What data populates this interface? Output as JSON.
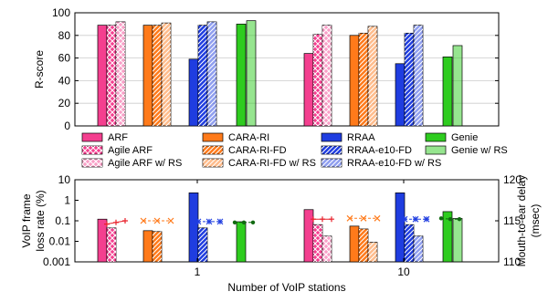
{
  "legend": [
    {
      "label": "ARF",
      "color": "#f43f8f",
      "pattern": "solid"
    },
    {
      "label": "Agile ARF",
      "color": "#f43f8f",
      "pattern": "cross"
    },
    {
      "label": "Agile ARF w/ RS",
      "color": "#f43f8f",
      "pattern": "cross-light"
    },
    {
      "label": "CARA-RI",
      "color": "#ff7a1a",
      "pattern": "solid"
    },
    {
      "label": "CARA-RI-FD",
      "color": "#ff7a1a",
      "pattern": "diag"
    },
    {
      "label": "CARA-RI-FD w/ RS",
      "color": "#ff7a1a",
      "pattern": "diag-light"
    },
    {
      "label": "RRAA",
      "color": "#1f3de0",
      "pattern": "solid"
    },
    {
      "label": "RRAA-e10-FD",
      "color": "#1f3de0",
      "pattern": "diag"
    },
    {
      "label": "RRAA-e10-FD w/ RS",
      "color": "#1f3de0",
      "pattern": "diag-light"
    },
    {
      "label": "Genie",
      "color": "#2ecc1f",
      "pattern": "solid"
    },
    {
      "label": "Genie w/ RS",
      "color": "#2ecc1f",
      "pattern": "light"
    }
  ],
  "chart_data": [
    {
      "type": "bar",
      "ylabel": "R-score",
      "ylim": [
        0,
        100
      ],
      "yticks": [
        "0",
        "20",
        "40",
        "60",
        "80",
        "100"
      ],
      "categories": [
        "1",
        "10"
      ],
      "grid": true,
      "series": [
        {
          "name": "ARF",
          "values": [
            89,
            64
          ]
        },
        {
          "name": "Agile ARF",
          "values": [
            89,
            81
          ]
        },
        {
          "name": "Agile ARF w/ RS",
          "values": [
            92,
            89
          ]
        },
        {
          "name": "CARA-RI",
          "values": [
            89,
            80
          ]
        },
        {
          "name": "CARA-RI-FD",
          "values": [
            89,
            82
          ]
        },
        {
          "name": "CARA-RI-FD w/ RS",
          "values": [
            91,
            88
          ]
        },
        {
          "name": "RRAA",
          "values": [
            59,
            55
          ]
        },
        {
          "name": "RRAA-e10-FD",
          "values": [
            89,
            82
          ]
        },
        {
          "name": "RRAA-e10-FD w/ RS",
          "values": [
            92,
            89
          ]
        },
        {
          "name": "Genie",
          "values": [
            90,
            61
          ]
        },
        {
          "name": "Genie w/ RS",
          "values": [
            93,
            71
          ]
        }
      ]
    },
    {
      "type": "bar",
      "ylabel": "VoIP frame loss rate (%)",
      "y_scale": "log",
      "ylim": [
        0.001,
        10
      ],
      "yticks": [
        "0.001",
        "0.01",
        "0.1",
        "1",
        "10"
      ],
      "y2label": "Mouth-to-ear delay (msec)",
      "y2lim": [
        110,
        120
      ],
      "y2ticks": [
        "110",
        "115",
        "120"
      ],
      "xlabel": "Number of VoIP stations",
      "categories": [
        "1",
        "10"
      ],
      "series": [
        {
          "name": "ARF",
          "values": [
            0.12,
            0.35
          ]
        },
        {
          "name": "Agile ARF",
          "values": [
            0.045,
            0.065
          ]
        },
        {
          "name": "Agile ARF w/ RS",
          "values": [
            0.001,
            0.018
          ]
        },
        {
          "name": "CARA-RI",
          "values": [
            0.033,
            0.055
          ]
        },
        {
          "name": "CARA-RI-FD",
          "values": [
            0.03,
            0.04
          ]
        },
        {
          "name": "CARA-RI-FD w/ RS",
          "values": [
            0.001,
            0.009
          ]
        },
        {
          "name": "RRAA",
          "values": [
            2.3,
            2.3
          ]
        },
        {
          "name": "RRAA-e10-FD",
          "values": [
            0.045,
            0.065
          ]
        },
        {
          "name": "RRAA-e10-FD w/ RS",
          "values": [
            0.001,
            0.018
          ]
        },
        {
          "name": "Genie",
          "values": [
            0.09,
            0.28
          ]
        },
        {
          "name": "Genie w/ RS",
          "values": [
            0.001,
            0.13
          ]
        }
      ],
      "delay_lines": [
        {
          "name": "ARF",
          "color": "#e8202a",
          "marker": "plus",
          "values": [
            [
              114.6,
              114.8,
              115.0
            ],
            [
              115.2,
              115.2,
              115.2
            ]
          ]
        },
        {
          "name": "CARA-RI",
          "color": "#ff7a1a",
          "marker": "x",
          "values": [
            [
              115.0,
              115.0,
              115.0
            ],
            [
              115.3,
              115.3,
              115.3
            ]
          ]
        },
        {
          "name": "RRAA",
          "color": "#1f3de0",
          "marker": "asterisk",
          "values": [
            [
              114.9,
              114.9,
              114.9
            ],
            [
              115.2,
              115.2,
              115.2
            ]
          ]
        },
        {
          "name": "Genie",
          "color": "#116a11",
          "marker": "dot",
          "values": [
            [
              114.8,
              114.8,
              114.8
            ],
            [
              115.3,
              115.2,
              115.2
            ]
          ]
        }
      ]
    }
  ]
}
